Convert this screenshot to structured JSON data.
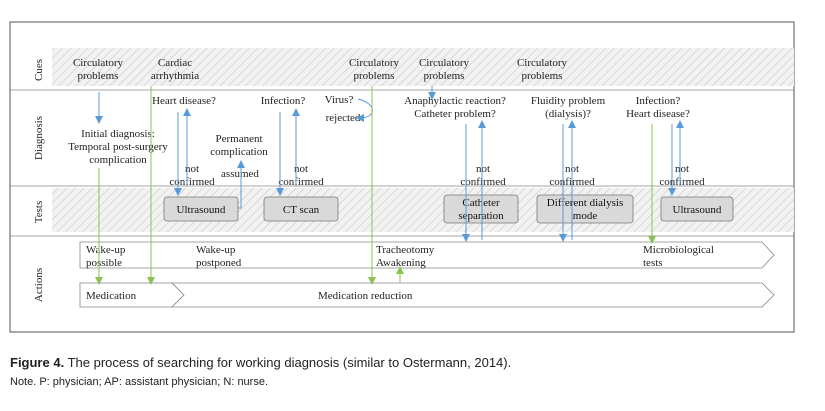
{
  "lanes": {
    "cues": "Cues",
    "diagnosis": "Diagnosis",
    "tests": "Tests",
    "actions": "Actions"
  },
  "cues": [
    {
      "line1": "Circulatory",
      "line2": "problems"
    },
    {
      "line1": "Cardiac",
      "line2": "arrhythmia"
    },
    {
      "line1": "Circulatory",
      "line2": "problems"
    },
    {
      "line1": "Circulatory",
      "line2": "problems"
    },
    {
      "line1": "Circulatory",
      "line2": "problems"
    }
  ],
  "diagnosis": {
    "initial": [
      "Initial diagnosis:",
      "Temporal post-surgery",
      "complication"
    ],
    "heart_disease": "Heart disease?",
    "permanent": [
      "Permanent",
      "complication"
    ],
    "assumed": "assumed",
    "infection": "Infection?",
    "virus": "Virus?",
    "rejected": "rejected",
    "anaphylactic": [
      "Anaphylactic reaction?",
      "Catheter problem?"
    ],
    "fluidity": [
      "Fluidity problem",
      "(dialysis)?"
    ],
    "infection_heart": [
      "Infection?",
      "Heart disease?"
    ],
    "not_confirmed": [
      "not",
      "confirmed"
    ]
  },
  "tests": {
    "ultrasound_1": "Ultrasound",
    "ct_scan": "CT scan",
    "catheter": [
      "Catheter",
      "separation"
    ],
    "dialysis": [
      "Different dialysis",
      "mode"
    ],
    "ultrasound_2": "Ultrasound"
  },
  "actions": {
    "wake_up_possible": [
      "Wake-up",
      "possible"
    ],
    "wake_up_postponed": [
      "Wake-up",
      "postponed"
    ],
    "tracheotomy": [
      "Tracheotomy",
      "Awakening"
    ],
    "microbiological": [
      "Microbiological",
      "tests"
    ],
    "medication": "Medication",
    "medication_reduction": "Medication reduction"
  },
  "colors": {
    "blue_arrow": "#5b9bd5",
    "green_arrow": "#8cc152",
    "box_fill": "#d9d9d9",
    "hatch": "#bbbbbb"
  },
  "caption": {
    "label": "Figure 4.",
    "text": "The process of searching for working diagnosis (similar to Ostermann, 2014).",
    "note": "Note. P: physician; AP: assistant physician; N: nurse."
  }
}
